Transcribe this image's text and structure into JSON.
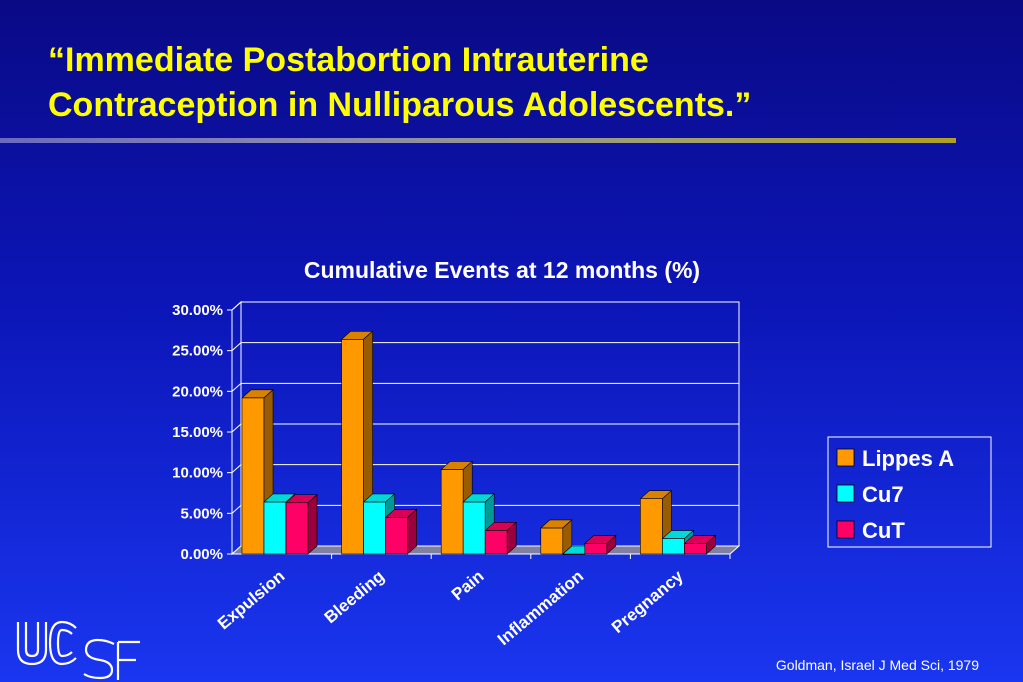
{
  "slide": {
    "title_line1": "“Immediate Postabortion Intrauterine",
    "title_line2": "Contraception in Nulliparous Adolescents.”",
    "citation": "Goldman, Israel J Med Sci, 1979",
    "logo_text": "UCSF",
    "title_color": "#ffff00"
  },
  "chart_data": {
    "type": "bar",
    "title": "Cumulative Events at 12 months (%)",
    "categories": [
      "Expulsion",
      "Bleeding",
      "Pain",
      "Inflammation",
      "Pregnancy"
    ],
    "series": [
      {
        "name": "Lippes A",
        "color": "#ff9900",
        "values": [
          19.2,
          26.4,
          10.4,
          3.2,
          6.8
        ]
      },
      {
        "name": "Cu7",
        "color": "#00ffff",
        "values": [
          6.4,
          6.4,
          6.4,
          0.0,
          1.9
        ]
      },
      {
        "name": "CuT",
        "color": "#ff0066",
        "values": [
          6.3,
          4.5,
          2.9,
          1.3,
          1.3
        ]
      }
    ],
    "ylim": [
      0,
      30
    ],
    "yticks": [
      "0.00%",
      "5.00%",
      "10.00%",
      "15.00%",
      "20.00%",
      "25.00%",
      "30.00%"
    ],
    "ytick_values": [
      0,
      5,
      10,
      15,
      20,
      25,
      30
    ],
    "grid": true,
    "legend_position": "right"
  }
}
